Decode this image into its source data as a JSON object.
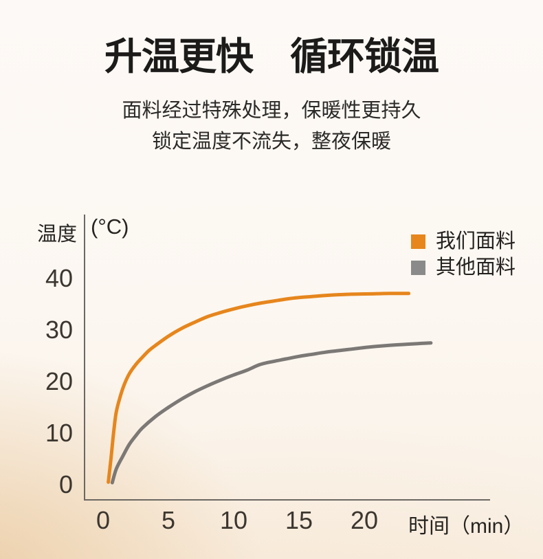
{
  "header": {
    "title": "升温更快　循环锁温",
    "subtitle_line1": "面料经过特殊处理，保暖性更持久",
    "subtitle_line2": "锁定温度不流失，整夜保暖"
  },
  "chart_data": {
    "type": "line",
    "title": "升温更快 循环锁温",
    "grid": false,
    "x_axis": {
      "label": "时间（min）",
      "ticks": [
        0,
        5,
        10,
        15,
        20
      ],
      "range": [
        0,
        26
      ]
    },
    "y_axis": {
      "label": "温度",
      "unit_label": "(°C)",
      "ticks": [
        0,
        10,
        20,
        30,
        40
      ],
      "range": [
        0,
        43
      ]
    },
    "legend": {
      "position": "top-right",
      "entries": [
        {
          "label": "我们面料",
          "color": "#E6861D"
        },
        {
          "label": "其他面料",
          "color": "#8A8A8A"
        }
      ]
    },
    "series": [
      {
        "name": "我们面料",
        "color": "#E6861D",
        "points": [
          [
            0.4,
            0.5
          ],
          [
            0.6,
            5
          ],
          [
            0.8,
            10
          ],
          [
            1,
            14
          ],
          [
            1.3,
            17
          ],
          [
            1.6,
            19.3
          ],
          [
            2,
            21.5
          ],
          [
            2.5,
            23.3
          ],
          [
            3,
            24.7
          ],
          [
            3.5,
            26
          ],
          [
            4,
            27
          ],
          [
            5,
            28.8
          ],
          [
            6,
            30.3
          ],
          [
            7,
            31.5
          ],
          [
            8,
            32.6
          ],
          [
            9,
            33.4
          ],
          [
            10,
            34.1
          ],
          [
            11,
            34.7
          ],
          [
            12,
            35.2
          ],
          [
            13,
            35.6
          ],
          [
            14,
            36
          ],
          [
            15,
            36.3
          ],
          [
            16,
            36.5
          ],
          [
            17,
            36.7
          ],
          [
            18,
            36.85
          ],
          [
            19,
            36.95
          ],
          [
            20,
            37
          ],
          [
            21,
            37.05
          ],
          [
            22,
            37.1
          ],
          [
            23.4,
            37.1
          ]
        ]
      },
      {
        "name": "其他面料",
        "color": "#7B7875",
        "points": [
          [
            0.7,
            0.4
          ],
          [
            1,
            3
          ],
          [
            1.5,
            5.5
          ],
          [
            2,
            7.8
          ],
          [
            2.5,
            9.5
          ],
          [
            3,
            11
          ],
          [
            4,
            13.2
          ],
          [
            5,
            15
          ],
          [
            6,
            16.6
          ],
          [
            7,
            18
          ],
          [
            8,
            19.2
          ],
          [
            9,
            20.3
          ],
          [
            10,
            21.3
          ],
          [
            11,
            22.2
          ],
          [
            12,
            23.3
          ],
          [
            13,
            23.9
          ],
          [
            14,
            24.4
          ],
          [
            15,
            24.9
          ],
          [
            16,
            25.3
          ],
          [
            17,
            25.7
          ],
          [
            18,
            26
          ],
          [
            19,
            26.3
          ],
          [
            20,
            26.6
          ],
          [
            21,
            26.85
          ],
          [
            22,
            27.05
          ],
          [
            23,
            27.2
          ],
          [
            24,
            27.35
          ],
          [
            25.1,
            27.5
          ]
        ]
      }
    ],
    "colors": {
      "axis": "#6B6762",
      "tick_text": "#3B362F",
      "background_peach": "#E9C79B"
    }
  }
}
